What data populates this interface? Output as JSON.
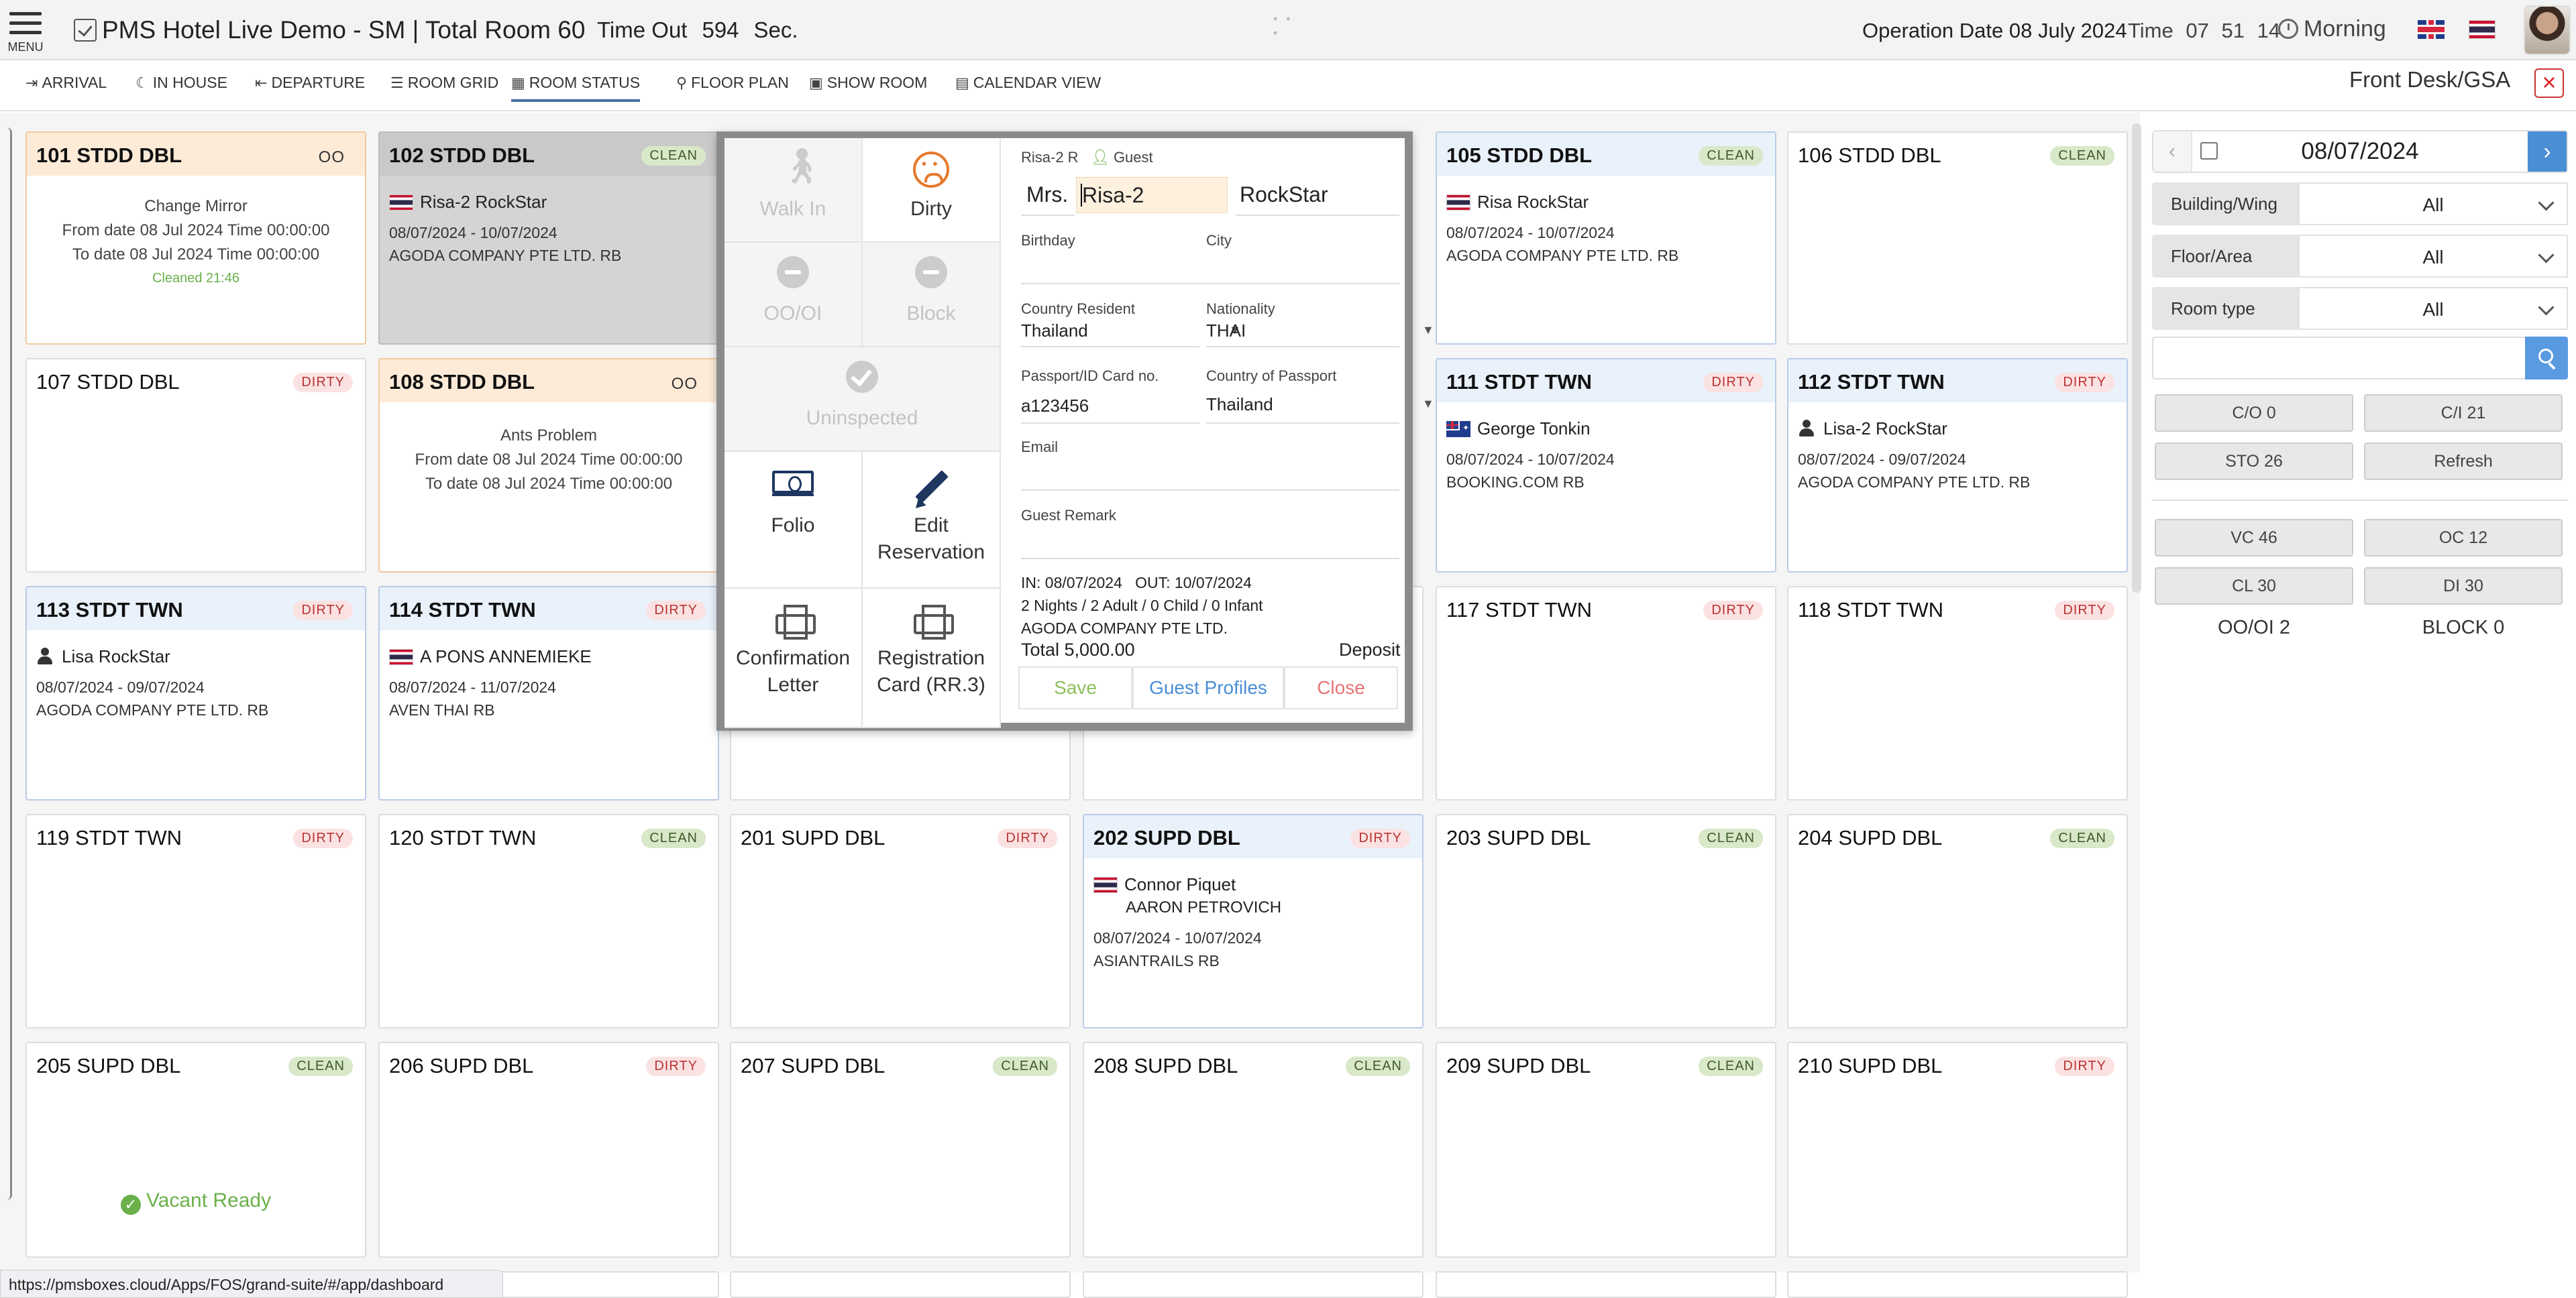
{
  "app": {
    "menu_label": "MENU",
    "title": "PMS Hotel Live Demo - SM | Total Room 60",
    "timeout_label": "Time Out",
    "timeout_value": "594",
    "timeout_unit": "Sec.",
    "operation_date": "Operation Date 08 July 2024",
    "time_label": "Time",
    "time_h": "07",
    "time_m": "51",
    "time_s": "14",
    "shift": "Morning",
    "role": "Front Desk/GSA",
    "status_url": "https://pmsboxes.cloud/Apps/FOS/grand-suite/#/app/dashboard"
  },
  "nav": [
    {
      "label": "ARRIVAL",
      "icon": "sign-in-icon"
    },
    {
      "label": "IN HOUSE",
      "icon": "moon-icon"
    },
    {
      "label": "DEPARTURE",
      "icon": "sign-out-icon"
    },
    {
      "label": "ROOM GRID",
      "icon": "list-icon"
    },
    {
      "label": "ROOM STATUS",
      "icon": "grid-icon"
    },
    {
      "label": "FLOOR PLAN",
      "icon": "map-marker-icon"
    },
    {
      "label": "SHOW ROOM",
      "icon": "image-icon"
    },
    {
      "label": "CALENDAR VIEW",
      "icon": "calendar-icon"
    }
  ],
  "rooms": {
    "r101": {
      "name": "101 STDD DBL",
      "badge": "OO",
      "note1": "Change Mirror",
      "note2": "From date 08 Jul 2024 Time 00:00:00",
      "note3": "To date 08 Jul 2024 Time 00:00:00",
      "note4": "Cleaned 21:46"
    },
    "r102": {
      "name": "102 STDD DBL",
      "badge": "CLEAN",
      "guest": "Risa-2 RockStar",
      "dates": "08/07/2024 - 10/07/2024",
      "company": "AGODA COMPANY PTE LTD. RB"
    },
    "r105": {
      "name": "105 STDD DBL",
      "badge": "CLEAN",
      "guest": "Risa RockStar",
      "dates": "08/07/2024 - 10/07/2024",
      "company": "AGODA COMPANY PTE LTD. RB"
    },
    "r106": {
      "name": "106 STDD DBL",
      "badge": "CLEAN"
    },
    "r107": {
      "name": "107 STDD DBL",
      "badge": "DIRTY"
    },
    "r108": {
      "name": "108 STDD DBL",
      "badge": "OO",
      "note1": "Ants Problem",
      "note2": "From date 08 Jul 2024 Time 00:00:00",
      "note3": "To date 08 Jul 2024 Time 00:00:00"
    },
    "r111": {
      "name": "111 STDT TWN",
      "badge": "DIRTY",
      "guest": "George Tonkin",
      "dates": "08/07/2024 - 10/07/2024",
      "company": "BOOKING.COM RB"
    },
    "r112": {
      "name": "112 STDT TWN",
      "badge": "DIRTY",
      "guest": "Lisa-2 RockStar",
      "dates": "08/07/2024 - 09/07/2024",
      "company": "AGODA COMPANY PTE LTD. RB"
    },
    "r113": {
      "name": "113 STDT TWN",
      "badge": "DIRTY",
      "guest": "Lisa RockStar",
      "dates": "08/07/2024 - 09/07/2024",
      "company": "AGODA COMPANY PTE LTD. RB"
    },
    "r114": {
      "name": "114 STDT TWN",
      "badge": "DIRTY",
      "guest": "A PONS ANNEMIEKE",
      "dates": "08/07/2024 - 11/07/2024",
      "company": "AVEN THAI RB"
    },
    "r117": {
      "name": "117 STDT TWN",
      "badge": "DIRTY"
    },
    "r118": {
      "name": "118 STDT TWN",
      "badge": "DIRTY"
    },
    "r119": {
      "name": "119 STDT TWN",
      "badge": "DIRTY"
    },
    "r120": {
      "name": "120 STDT TWN",
      "badge": "CLEAN"
    },
    "r201": {
      "name": "201 SUPD DBL",
      "badge": "DIRTY"
    },
    "r202": {
      "name": "202 SUPD DBL",
      "badge": "DIRTY",
      "guest": "Connor Piquet",
      "guest2": "AARON PETROVICH",
      "dates": "08/07/2024 - 10/07/2024",
      "company": "ASIANTRAILS RB"
    },
    "r203": {
      "name": "203 SUPD DBL",
      "badge": "CLEAN"
    },
    "r204": {
      "name": "204 SUPD DBL",
      "badge": "CLEAN"
    },
    "r205": {
      "name": "205 SUPD DBL",
      "badge": "CLEAN",
      "vacant": "Vacant Ready"
    },
    "r206": {
      "name": "206 SUPD DBL",
      "badge": "DIRTY"
    },
    "r207": {
      "name": "207 SUPD DBL",
      "badge": "CLEAN"
    },
    "r208": {
      "name": "208 SUPD DBL",
      "badge": "CLEAN"
    },
    "r209": {
      "name": "209 SUPD DBL",
      "badge": "CLEAN"
    },
    "r210": {
      "name": "210 SUPD DBL",
      "badge": "DIRTY"
    }
  },
  "popup": {
    "actions": {
      "walk_in": "Walk In",
      "dirty": "Dirty",
      "oooi": "OO/OI",
      "block": "Block",
      "uninspected": "Uninspected",
      "folio": "Folio",
      "edit_1": "Edit",
      "edit_2": "Reservation",
      "conf_1": "Confirmation",
      "conf_2": "Letter",
      "reg_1": "Registration",
      "reg_2": "Card (RR.3)"
    },
    "header_name": "Risa-2 R",
    "guest_tag": "Guest",
    "title": "Mrs.",
    "first_name": "Risa-2",
    "last_name": "RockStar",
    "birthday_label": "Birthday",
    "birthday_value": "",
    "city_label": "City",
    "city_value": "",
    "country_res_label": "Country Resident",
    "country_res_value": "Thailand",
    "nationality_label": "Nationality",
    "nationality_value": "THAI",
    "passport_label": "Passport/ID Card no.",
    "passport_value": "a123456",
    "country_pass_label": "Country of Passport",
    "country_pass_value": "Thailand",
    "email_label": "Email",
    "email_value": "",
    "remark_label": "Guest Remark",
    "remark_value": "",
    "stay_in_out": "IN: 08/07/2024   OUT: 10/07/2024",
    "stay_guests": "2 Nights / 2 Adult / 0 Child / 0 Infant",
    "stay_company": "AGODA COMPANY PTE LTD.",
    "total": "Total 5,000.00",
    "deposit": "Deposit",
    "save": "Save",
    "profiles": "Guest Profiles",
    "close": "Close"
  },
  "right_panel": {
    "date": "08/07/2024",
    "filters": [
      {
        "label": "Building/Wing",
        "value": "All"
      },
      {
        "label": "Floor/Area",
        "value": "All"
      },
      {
        "label": "Room type",
        "value": "All"
      }
    ],
    "search_value": "",
    "buttons": {
      "co": "C/O 0",
      "ci": "C/I 21",
      "sto": "STO 26",
      "refresh": "Refresh",
      "vc": "VC 46",
      "oc": "OC 12",
      "cl": "CL 30",
      "di": "DI 30"
    },
    "oooi": "OO/OI 2",
    "block": "BLOCK 0"
  },
  "colors": {
    "accent": "#4a8ed6",
    "clean_badge": "#d8e8c9",
    "dirty_badge": "#fbe2e2",
    "oo_header": "#fdebd8",
    "occupied_header": "#e9f1fb",
    "dirty_icon": "#e6792b",
    "close_red": "#d22"
  }
}
